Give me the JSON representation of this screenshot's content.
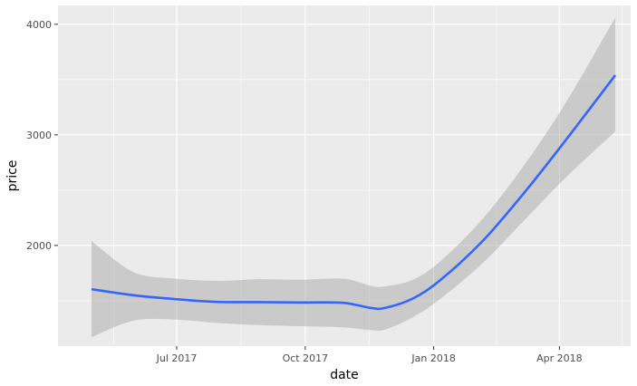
{
  "chart_data": {
    "type": "line",
    "xlabel": "date",
    "ylabel": "price",
    "xlim": [
      "2017-04-07",
      "2018-05-22"
    ],
    "ylim": [
      1090,
      4170
    ],
    "x_ticks": [
      {
        "date": "2017-07-01",
        "label": "Jul 2017"
      },
      {
        "date": "2017-10-01",
        "label": "Oct 2017"
      },
      {
        "date": "2018-01-01",
        "label": "Jan 2018"
      },
      {
        "date": "2018-04-01",
        "label": "Apr 2018"
      }
    ],
    "x_minor_ticks": [
      "2017-05-17",
      "2017-08-16",
      "2017-11-16",
      "2018-02-15",
      "2018-05-16"
    ],
    "y_ticks": [
      2000,
      3000,
      4000
    ],
    "y_minor_ticks": [
      1500,
      2500,
      3500
    ],
    "grid": true,
    "colors": {
      "panel": "#ebebeb",
      "grid": "#ffffff",
      "line": "#3366ff",
      "ribbon": "#999999"
    },
    "series": [
      {
        "type": "smooth",
        "x": [
          "2017-05-01",
          "2017-05-31",
          "2017-06-30",
          "2017-07-30",
          "2017-08-29",
          "2017-09-28",
          "2017-10-28",
          "2017-11-17",
          "2017-11-27",
          "2017-12-17",
          "2018-01-06",
          "2018-02-05",
          "2018-03-07",
          "2018-04-06",
          "2018-05-11"
        ],
        "y": [
          1605,
          1550,
          1515,
          1490,
          1488,
          1485,
          1482,
          1435,
          1435,
          1520,
          1690,
          2040,
          2480,
          2960,
          3540
        ],
        "ymin": [
          1170,
          1320,
          1330,
          1300,
          1280,
          1270,
          1260,
          1235,
          1240,
          1350,
          1520,
          1840,
          2230,
          2620,
          3030
        ],
        "ymax": [
          2040,
          1760,
          1700,
          1680,
          1695,
          1690,
          1700,
          1635,
          1630,
          1690,
          1860,
          2240,
          2730,
          3300,
          4060
        ]
      }
    ]
  }
}
